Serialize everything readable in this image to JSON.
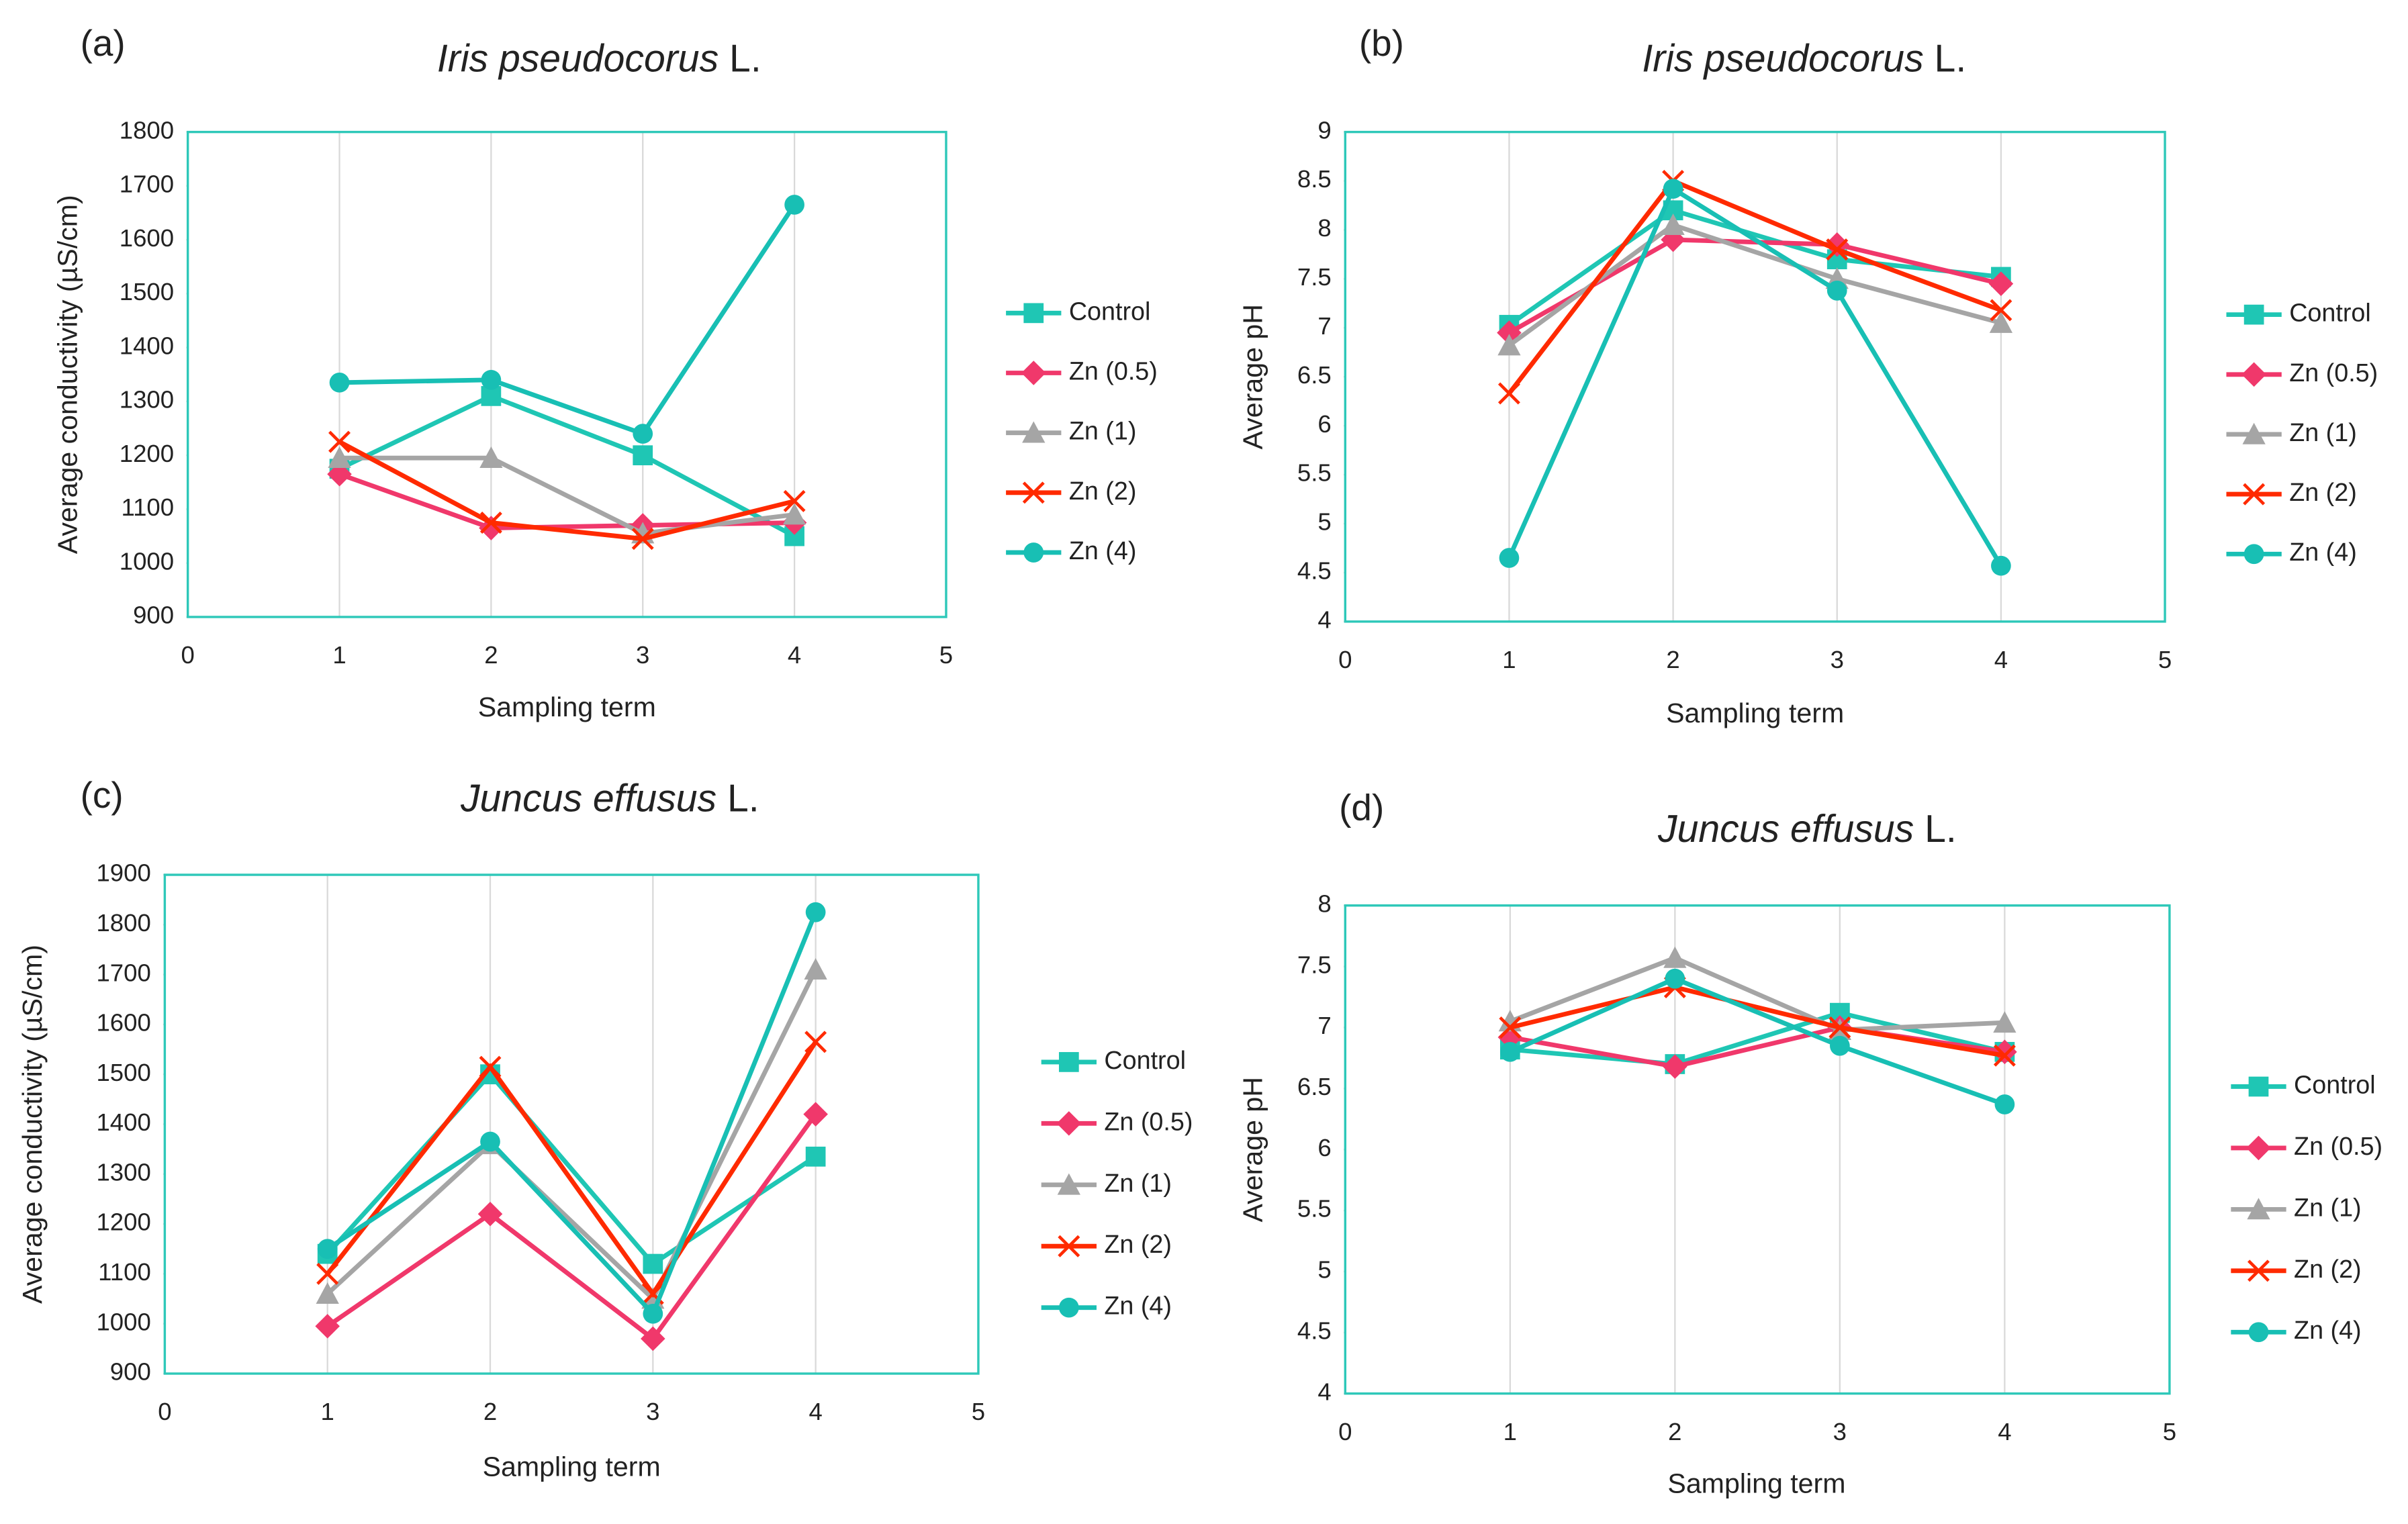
{
  "chart_data": [
    {
      "type": "line",
      "panel_label": "(a)",
      "title": {
        "italic": "Iris pseudocorus",
        "normal": "L."
      },
      "x_label": "Sampling term",
      "y_label": "Average conductivity (µS/cm)",
      "x": [
        1,
        2,
        3,
        4
      ],
      "xlim": [
        0,
        5
      ],
      "xticks": [
        0,
        1,
        2,
        3,
        4,
        5
      ],
      "ylim": [
        900,
        1800
      ],
      "yticks": [
        900,
        1000,
        1100,
        1200,
        1300,
        1400,
        1500,
        1600,
        1700,
        1800
      ],
      "grid": "x",
      "series": [
        {
          "name": "Control",
          "color": "#1fc6b4",
          "marker": "square",
          "values": [
            1175,
            1310,
            1200,
            1050
          ]
        },
        {
          "name": "Zn (0.5)",
          "color": "#f0386b",
          "marker": "diamond",
          "values": [
            1165,
            1065,
            1070,
            1075
          ]
        },
        {
          "name": "Zn (1)",
          "color": "#a5a5a5",
          "marker": "triangle",
          "values": [
            1195,
            1195,
            1055,
            1090
          ]
        },
        {
          "name": "Zn (2)",
          "color": "#ff2a00",
          "marker": "x",
          "values": [
            1225,
            1075,
            1045,
            1115
          ]
        },
        {
          "name": "Zn (4)",
          "color": "#18bfb4",
          "marker": "circle",
          "values": [
            1335,
            1340,
            1240,
            1665
          ]
        }
      ]
    },
    {
      "type": "line",
      "panel_label": "(b)",
      "title": {
        "italic": "Iris pseudocorus",
        "normal": "L."
      },
      "x_label": "Sampling term",
      "y_label": "Average pH",
      "x": [
        1,
        2,
        3,
        4
      ],
      "xlim": [
        0,
        5
      ],
      "xticks": [
        0,
        1,
        2,
        3,
        4,
        5
      ],
      "ylim": [
        4,
        9
      ],
      "yticks": [
        4,
        4.5,
        5,
        5.5,
        6,
        6.5,
        7,
        7.5,
        8,
        8.5,
        9
      ],
      "grid": "x",
      "series": [
        {
          "name": "Control",
          "color": "#1fc6b4",
          "marker": "square",
          "values": [
            7.03,
            8.2,
            7.7,
            7.52
          ]
        },
        {
          "name": "Zn (0.5)",
          "color": "#f0386b",
          "marker": "diamond",
          "values": [
            6.95,
            7.9,
            7.85,
            7.45
          ]
        },
        {
          "name": "Zn (1)",
          "color": "#a5a5a5",
          "marker": "triangle",
          "values": [
            6.82,
            8.05,
            7.5,
            7.05
          ]
        },
        {
          "name": "Zn (2)",
          "color": "#ff2a00",
          "marker": "x",
          "values": [
            6.33,
            8.5,
            7.8,
            7.18
          ]
        },
        {
          "name": "Zn (4)",
          "color": "#18bfb4",
          "marker": "circle",
          "values": [
            4.65,
            8.42,
            7.38,
            4.57
          ]
        }
      ]
    },
    {
      "type": "line",
      "panel_label": "(c)",
      "title": {
        "italic": "Juncus effusus",
        "normal": "L."
      },
      "x_label": "Sampling term",
      "y_label": "Average conductivity (µS/cm)",
      "x": [
        1,
        2,
        3,
        4
      ],
      "xlim": [
        0,
        5
      ],
      "xticks": [
        0,
        1,
        2,
        3,
        4,
        5
      ],
      "ylim": [
        900,
        1900
      ],
      "yticks": [
        900,
        1000,
        1100,
        1200,
        1300,
        1400,
        1500,
        1600,
        1700,
        1800,
        1900
      ],
      "grid": "x",
      "series": [
        {
          "name": "Control",
          "color": "#1fc6b4",
          "marker": "square",
          "values": [
            1140,
            1500,
            1120,
            1335
          ]
        },
        {
          "name": "Zn (0.5)",
          "color": "#f0386b",
          "marker": "diamond",
          "values": [
            995,
            1220,
            970,
            1420
          ]
        },
        {
          "name": "Zn (1)",
          "color": "#a5a5a5",
          "marker": "triangle",
          "values": [
            1060,
            1360,
            1050,
            1710
          ]
        },
        {
          "name": "Zn (2)",
          "color": "#ff2a00",
          "marker": "x",
          "values": [
            1100,
            1515,
            1060,
            1565
          ]
        },
        {
          "name": "Zn (4)",
          "color": "#18bfb4",
          "marker": "circle",
          "values": [
            1150,
            1365,
            1020,
            1825
          ]
        }
      ]
    },
    {
      "type": "line",
      "panel_label": "(d)",
      "title": {
        "italic": "Juncus effusus",
        "normal": "L."
      },
      "x_label": "Sampling term",
      "y_label": "Average pH",
      "x": [
        1,
        2,
        3,
        4
      ],
      "xlim": [
        0,
        5
      ],
      "xticks": [
        0,
        1,
        2,
        3,
        4,
        5
      ],
      "ylim": [
        4,
        8
      ],
      "yticks": [
        4,
        4.5,
        5,
        5.5,
        6,
        6.5,
        7,
        7.5,
        8
      ],
      "grid": "x",
      "series": [
        {
          "name": "Control",
          "color": "#1fc6b4",
          "marker": "square",
          "values": [
            6.82,
            6.7,
            7.12,
            6.8
          ]
        },
        {
          "name": "Zn (0.5)",
          "color": "#f0386b",
          "marker": "diamond",
          "values": [
            6.92,
            6.68,
            7.0,
            6.8
          ]
        },
        {
          "name": "Zn (1)",
          "color": "#a5a5a5",
          "marker": "triangle",
          "values": [
            7.05,
            7.57,
            6.98,
            7.04
          ]
        },
        {
          "name": "Zn (2)",
          "color": "#ff2a00",
          "marker": "x",
          "values": [
            7.0,
            7.33,
            7.0,
            6.77
          ]
        },
        {
          "name": "Zn (4)",
          "color": "#18bfb4",
          "marker": "circle",
          "values": [
            6.8,
            7.4,
            6.85,
            6.37
          ]
        }
      ]
    }
  ]
}
